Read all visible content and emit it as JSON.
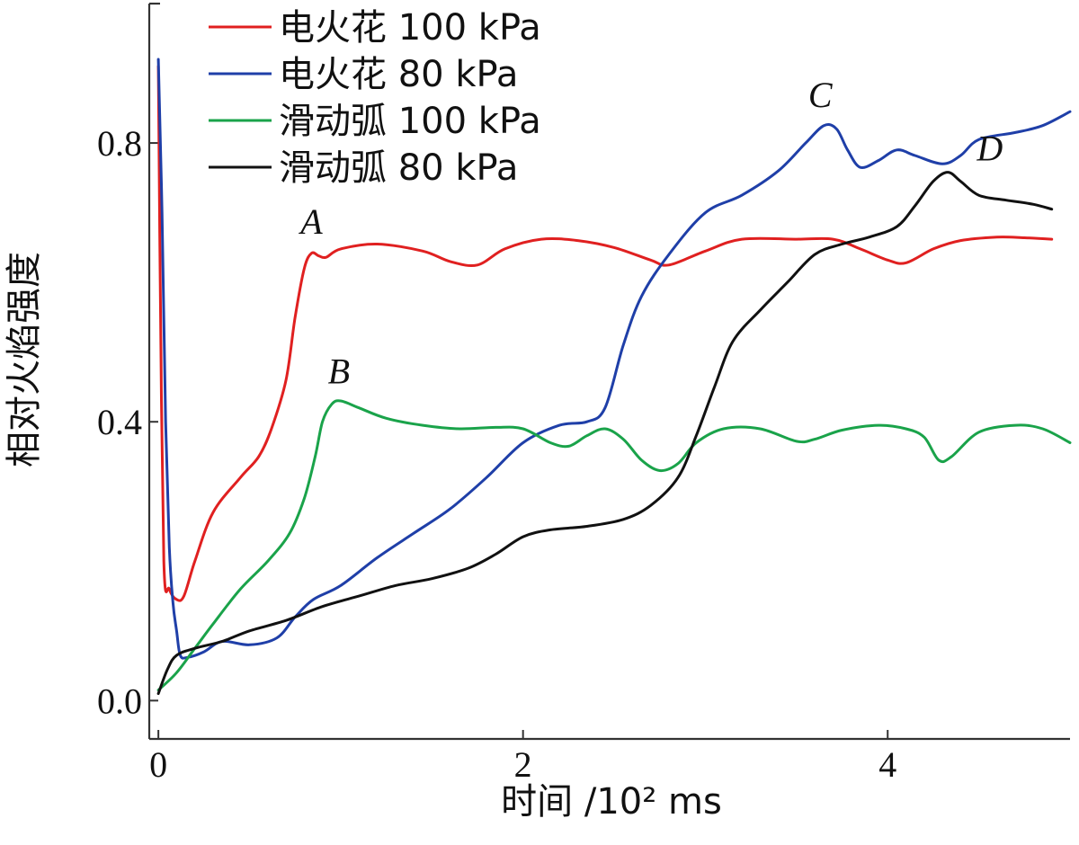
{
  "chart_data": {
    "type": "line",
    "title": "",
    "xlabel": "时间 /10² ms",
    "ylabel": "相对火焰强度",
    "xlim": [
      -0.05,
      5.0
    ],
    "ylim": [
      -0.055,
      1.0
    ],
    "x_ticks": [
      0,
      2,
      4
    ],
    "x_tick_labels": [
      "0",
      "2",
      "4"
    ],
    "y_ticks": [
      0.0,
      0.4,
      0.8
    ],
    "y_tick_labels": [
      "0.0",
      "0.4",
      "0.8"
    ],
    "grid": false,
    "legend_position": "top-left",
    "series": [
      {
        "name": "电火花 100 kPa",
        "color": "#e02020",
        "points": [
          [
            0.0,
            0.91
          ],
          [
            0.01,
            0.6
          ],
          [
            0.03,
            0.2
          ],
          [
            0.06,
            0.16
          ],
          [
            0.1,
            0.145
          ],
          [
            0.14,
            0.15
          ],
          [
            0.2,
            0.2
          ],
          [
            0.3,
            0.27
          ],
          [
            0.45,
            0.32
          ],
          [
            0.55,
            0.35
          ],
          [
            0.62,
            0.39
          ],
          [
            0.7,
            0.46
          ],
          [
            0.75,
            0.55
          ],
          [
            0.8,
            0.62
          ],
          [
            0.84,
            0.642
          ],
          [
            0.88,
            0.638
          ],
          [
            0.92,
            0.636
          ],
          [
            1.0,
            0.648
          ],
          [
            1.2,
            0.655
          ],
          [
            1.45,
            0.645
          ],
          [
            1.6,
            0.63
          ],
          [
            1.75,
            0.625
          ],
          [
            1.9,
            0.648
          ],
          [
            2.1,
            0.662
          ],
          [
            2.3,
            0.66
          ],
          [
            2.5,
            0.65
          ],
          [
            2.7,
            0.632
          ],
          [
            2.8,
            0.625
          ],
          [
            3.0,
            0.645
          ],
          [
            3.2,
            0.662
          ],
          [
            3.5,
            0.662
          ],
          [
            3.7,
            0.662
          ],
          [
            3.85,
            0.648
          ],
          [
            4.0,
            0.632
          ],
          [
            4.1,
            0.628
          ],
          [
            4.25,
            0.648
          ],
          [
            4.4,
            0.66
          ],
          [
            4.6,
            0.665
          ],
          [
            4.75,
            0.664
          ],
          [
            4.9,
            0.662
          ]
        ]
      },
      {
        "name": "电火花 80 kPa",
        "color": "#1f3fa8",
        "points": [
          [
            0.0,
            0.92
          ],
          [
            0.02,
            0.7
          ],
          [
            0.04,
            0.4
          ],
          [
            0.06,
            0.22
          ],
          [
            0.08,
            0.14
          ],
          [
            0.1,
            0.1
          ],
          [
            0.12,
            0.065
          ],
          [
            0.16,
            0.062
          ],
          [
            0.25,
            0.07
          ],
          [
            0.35,
            0.085
          ],
          [
            0.5,
            0.08
          ],
          [
            0.65,
            0.09
          ],
          [
            0.75,
            0.12
          ],
          [
            0.85,
            0.145
          ],
          [
            1.0,
            0.165
          ],
          [
            1.2,
            0.205
          ],
          [
            1.4,
            0.24
          ],
          [
            1.6,
            0.275
          ],
          [
            1.8,
            0.32
          ],
          [
            2.0,
            0.37
          ],
          [
            2.2,
            0.395
          ],
          [
            2.35,
            0.4
          ],
          [
            2.45,
            0.42
          ],
          [
            2.55,
            0.51
          ],
          [
            2.65,
            0.58
          ],
          [
            2.8,
            0.64
          ],
          [
            3.0,
            0.7
          ],
          [
            3.2,
            0.725
          ],
          [
            3.4,
            0.76
          ],
          [
            3.55,
            0.8
          ],
          [
            3.65,
            0.825
          ],
          [
            3.72,
            0.82
          ],
          [
            3.78,
            0.79
          ],
          [
            3.85,
            0.765
          ],
          [
            3.95,
            0.775
          ],
          [
            4.05,
            0.79
          ],
          [
            4.15,
            0.782
          ],
          [
            4.3,
            0.77
          ],
          [
            4.4,
            0.782
          ],
          [
            4.5,
            0.805
          ],
          [
            4.7,
            0.815
          ],
          [
            4.85,
            0.825
          ],
          [
            5.0,
            0.845
          ]
        ]
      },
      {
        "name": "滑动弧 100 kPa",
        "color": "#1aa34a",
        "points": [
          [
            0.0,
            0.015
          ],
          [
            0.1,
            0.04
          ],
          [
            0.2,
            0.075
          ],
          [
            0.3,
            0.11
          ],
          [
            0.45,
            0.16
          ],
          [
            0.6,
            0.2
          ],
          [
            0.72,
            0.24
          ],
          [
            0.8,
            0.29
          ],
          [
            0.86,
            0.35
          ],
          [
            0.9,
            0.4
          ],
          [
            0.95,
            0.425
          ],
          [
            1.0,
            0.43
          ],
          [
            1.1,
            0.42
          ],
          [
            1.25,
            0.405
          ],
          [
            1.45,
            0.395
          ],
          [
            1.65,
            0.39
          ],
          [
            1.85,
            0.392
          ],
          [
            2.0,
            0.39
          ],
          [
            2.15,
            0.37
          ],
          [
            2.25,
            0.365
          ],
          [
            2.35,
            0.38
          ],
          [
            2.45,
            0.39
          ],
          [
            2.55,
            0.375
          ],
          [
            2.65,
            0.345
          ],
          [
            2.75,
            0.33
          ],
          [
            2.85,
            0.34
          ],
          [
            2.95,
            0.37
          ],
          [
            3.1,
            0.39
          ],
          [
            3.3,
            0.39
          ],
          [
            3.5,
            0.372
          ],
          [
            3.6,
            0.375
          ],
          [
            3.75,
            0.388
          ],
          [
            3.95,
            0.395
          ],
          [
            4.1,
            0.39
          ],
          [
            4.2,
            0.378
          ],
          [
            4.28,
            0.345
          ],
          [
            4.35,
            0.35
          ],
          [
            4.5,
            0.385
          ],
          [
            4.7,
            0.395
          ],
          [
            4.85,
            0.39
          ],
          [
            5.0,
            0.37
          ]
        ]
      },
      {
        "name": "滑动弧 80 kPa",
        "color": "#111111",
        "points": [
          [
            0.0,
            0.01
          ],
          [
            0.05,
            0.045
          ],
          [
            0.1,
            0.065
          ],
          [
            0.2,
            0.075
          ],
          [
            0.35,
            0.085
          ],
          [
            0.5,
            0.1
          ],
          [
            0.7,
            0.115
          ],
          [
            0.9,
            0.135
          ],
          [
            1.1,
            0.15
          ],
          [
            1.3,
            0.165
          ],
          [
            1.5,
            0.175
          ],
          [
            1.7,
            0.19
          ],
          [
            1.85,
            0.21
          ],
          [
            2.0,
            0.235
          ],
          [
            2.15,
            0.245
          ],
          [
            2.35,
            0.25
          ],
          [
            2.55,
            0.26
          ],
          [
            2.7,
            0.28
          ],
          [
            2.85,
            0.32
          ],
          [
            2.95,
            0.38
          ],
          [
            3.05,
            0.45
          ],
          [
            3.15,
            0.515
          ],
          [
            3.3,
            0.56
          ],
          [
            3.45,
            0.6
          ],
          [
            3.6,
            0.64
          ],
          [
            3.75,
            0.655
          ],
          [
            3.9,
            0.665
          ],
          [
            4.05,
            0.68
          ],
          [
            4.15,
            0.71
          ],
          [
            4.25,
            0.745
          ],
          [
            4.33,
            0.758
          ],
          [
            4.4,
            0.745
          ],
          [
            4.5,
            0.725
          ],
          [
            4.65,
            0.718
          ],
          [
            4.8,
            0.712
          ],
          [
            4.9,
            0.705
          ]
        ]
      }
    ],
    "annotations": [
      {
        "text": "A",
        "x": 0.84,
        "y": 0.67
      },
      {
        "text": "B",
        "x": 0.99,
        "y": 0.455
      },
      {
        "text": "C",
        "x": 3.63,
        "y": 0.852
      },
      {
        "text": "D",
        "x": 4.56,
        "y": 0.775
      }
    ]
  }
}
